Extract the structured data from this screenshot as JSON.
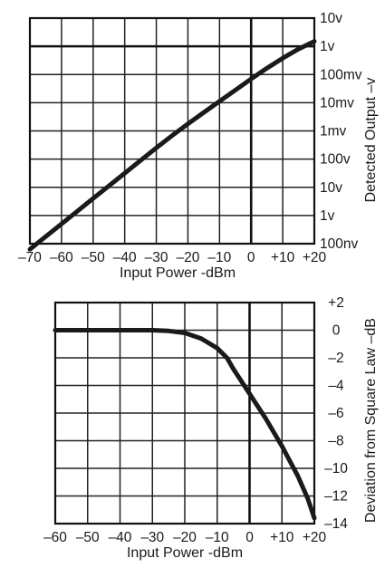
{
  "chart_data": [
    {
      "type": "line",
      "title": "",
      "xlabel": "Input Power -dBm",
      "ylabel": "Detected Output –v",
      "x_ticks": [
        "–70",
        "–60",
        "–50",
        "–40",
        "–30",
        "–20",
        "–10",
        "0",
        "+10",
        "+20"
      ],
      "y_ticks": [
        "10v",
        "1v",
        "100mv",
        "10mv",
        "1mv",
        "100v",
        "10v",
        "1v",
        "100nv"
      ],
      "xlim": [
        -70,
        20
      ],
      "ylim_log10_volts": [
        -7,
        1
      ],
      "y_scale": "log",
      "grid": true,
      "series": [
        {
          "x": [
            -70,
            -65,
            -60,
            -55,
            -50,
            -45,
            -40,
            -35,
            -30,
            -25,
            -20,
            -15,
            -10,
            -5,
            0,
            5,
            10,
            15,
            20
          ],
          "y": [
            6.3e-08,
            1.78e-07,
            5e-07,
            1.41e-06,
            4e-06,
            1.12e-05,
            3.16e-05,
            8.9e-05,
            0.00025,
            0.00068,
            0.00178,
            0.0045,
            0.0112,
            0.028,
            0.07,
            0.168,
            0.38,
            0.8,
            1.5
          ]
        }
      ]
    },
    {
      "type": "line",
      "title": "",
      "xlabel": "Input Power -dBm",
      "ylabel": "Deviation from Square Law –dB",
      "x_ticks": [
        "–60",
        "–50",
        "–40",
        "–30",
        "–20",
        "–10",
        "0",
        "+10",
        "+20"
      ],
      "y_ticks": [
        "+2",
        "0",
        "–2",
        "–4",
        "–6",
        "–8",
        "–10",
        "–12",
        "–14"
      ],
      "xlim": [
        -60,
        20
      ],
      "ylim": [
        -14,
        2
      ],
      "grid": true,
      "series": [
        {
          "x": [
            -60,
            -50,
            -40,
            -30,
            -25,
            -20,
            -15,
            -10,
            -7,
            -5,
            0,
            5,
            10,
            15,
            18,
            20
          ],
          "y": [
            0,
            0,
            0,
            0,
            -0.05,
            -0.2,
            -0.6,
            -1.3,
            -2.0,
            -2.8,
            -4.6,
            -6.4,
            -8.4,
            -10.6,
            -12.2,
            -13.6
          ]
        }
      ]
    }
  ]
}
